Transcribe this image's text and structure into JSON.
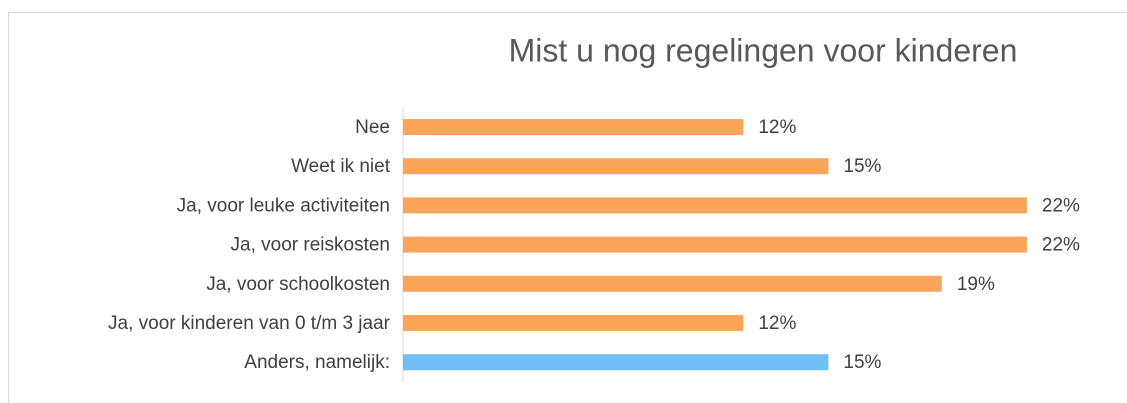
{
  "chart_data": {
    "type": "bar",
    "orientation": "horizontal",
    "title": "Mist u nog regelingen voor kinderen",
    "categories": [
      "Nee",
      "Weet ik niet",
      "Ja, voor leuke activiteiten",
      "Ja, voor reiskosten",
      "Ja, voor schoolkosten",
      "Ja, voor kinderen van 0 t/m 3 jaar",
      "Anders, namelijk:"
    ],
    "values": [
      12,
      15,
      22,
      22,
      19,
      12,
      15
    ],
    "value_labels": [
      "12%",
      "15%",
      "22%",
      "22%",
      "19%",
      "12%",
      "15%"
    ],
    "colors": [
      "#fba55a",
      "#fba55a",
      "#fba55a",
      "#fba55a",
      "#fba55a",
      "#fba55a",
      "#70bff4"
    ],
    "xlim": [
      0,
      23
    ]
  }
}
